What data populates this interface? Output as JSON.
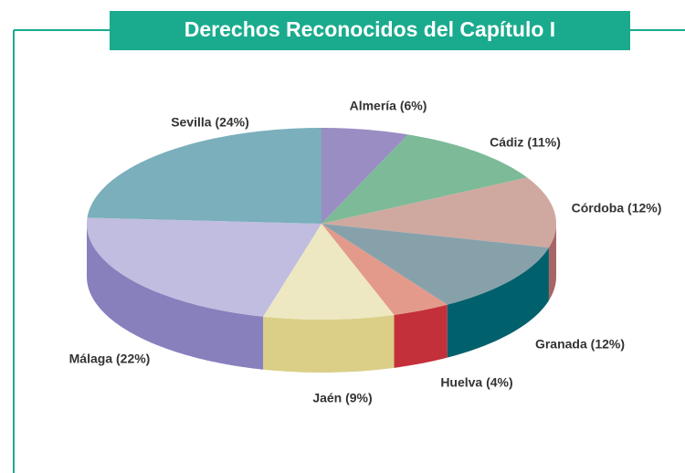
{
  "chart_data": {
    "type": "pie3d",
    "title": "Derechos Reconocidos del Capítulo I",
    "values": [
      6,
      11,
      12,
      12,
      4,
      9,
      22,
      24
    ],
    "value_labels": [
      "Almería (6%)",
      "Cádiz (11%)",
      "Córdoba (12%)",
      "Granada (12%)",
      "Huelva (4%)",
      "Jaén (9%)",
      "Málaga (22%)",
      "Sevilla (24%)"
    ],
    "colors": [
      "#9a8dc3",
      "#7cba98",
      "#cfa99f",
      "#87a1ab",
      "#e39a8b",
      "#ede8c1",
      "#c0bde0",
      "#7aafbb"
    ],
    "side_colors": [
      "#6d5f9e",
      "#4f8f6c",
      "#a86565",
      "#00606b",
      "#c3303a",
      "#dbcf88",
      "#8780bd",
      "#4f8894"
    ]
  }
}
